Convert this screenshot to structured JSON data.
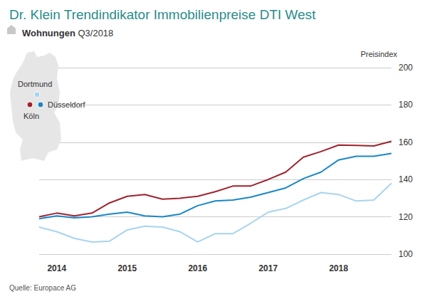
{
  "chart_data": {
    "type": "line",
    "title": "Dr. Klein Trendindikator Immobilienpreise DTI West",
    "subtitle": "Wohnungen Q3/2018",
    "y_label": "Preisindex",
    "source": "Quelle: Europace AG",
    "categories": [
      null,
      "2014",
      null,
      null,
      null,
      "2015",
      null,
      null,
      null,
      "2016",
      null,
      null,
      null,
      "2017",
      null,
      null,
      null,
      "2018",
      null,
      null,
      null
    ],
    "series": [
      {
        "name": "Köln",
        "color": "#a0222e",
        "values": [
          120,
          122,
          120.5,
          122,
          127.5,
          131,
          132,
          129.5,
          130,
          131,
          133.5,
          136.5,
          136.5,
          140,
          144,
          152,
          155,
          158.5,
          158.3,
          158,
          160.5
        ]
      },
      {
        "name": "Düsseldorf",
        "color": "#1a87c6",
        "values": [
          119,
          120.5,
          119.5,
          120,
          121.5,
          122.5,
          120.5,
          120,
          121.5,
          126,
          128.5,
          129,
          130.5,
          133,
          135.5,
          140.5,
          144,
          150.5,
          152.5,
          152.5,
          154
        ]
      },
      {
        "name": "Dortmund",
        "color": "#a8d4ee",
        "values": [
          114.5,
          112,
          108.5,
          106.5,
          107,
          113,
          115,
          114.5,
          112,
          106.5,
          111,
          111,
          116.5,
          122.5,
          124.5,
          129,
          133,
          132,
          128.5,
          129,
          138
        ]
      }
    ],
    "ylim": [
      100,
      200
    ],
    "yticks": [
      100,
      120,
      140,
      160,
      180,
      200
    ],
    "grid": true
  }
}
